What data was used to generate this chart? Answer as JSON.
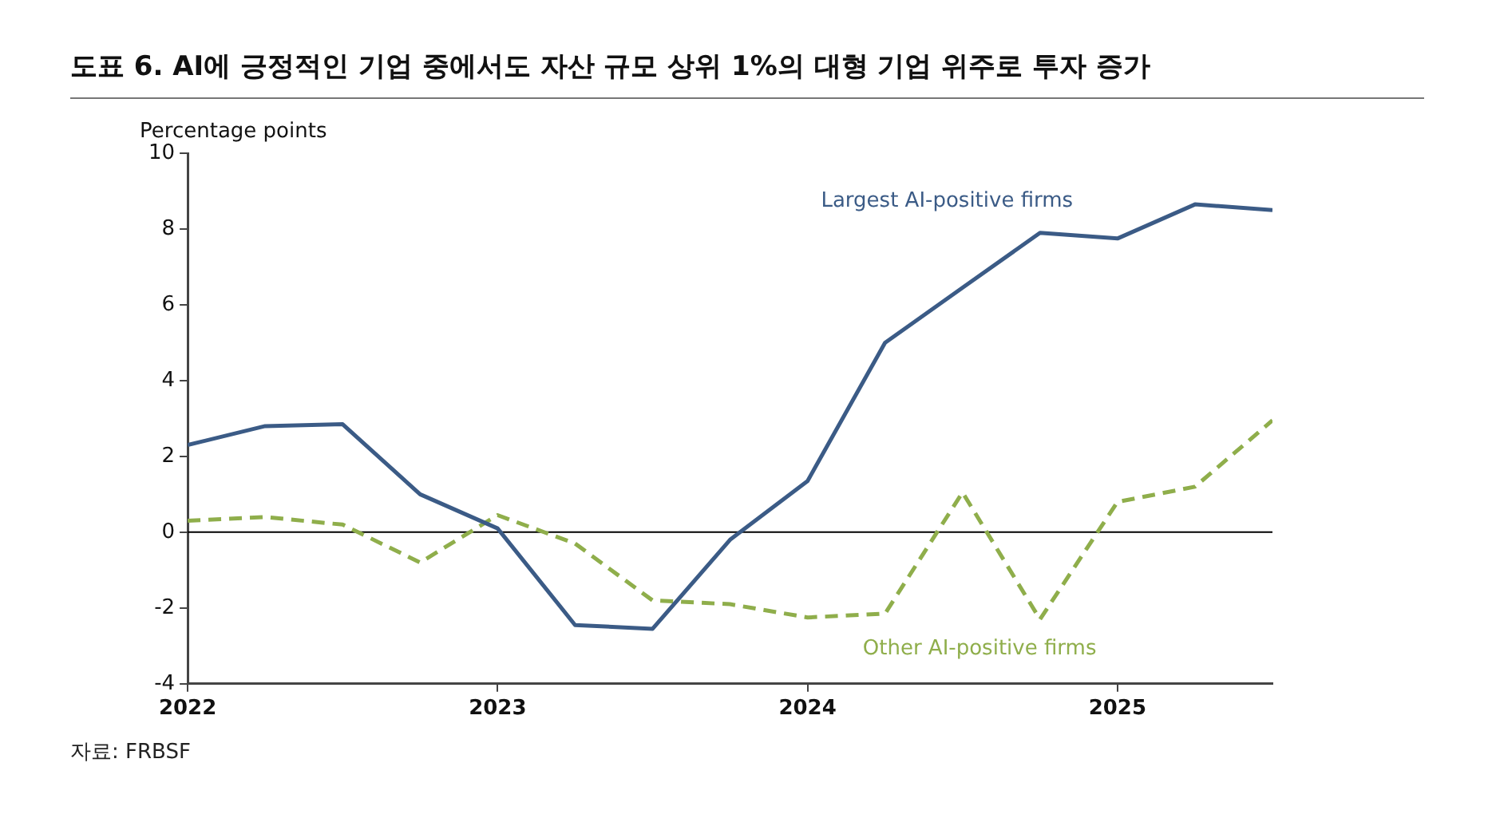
{
  "chart_data": {
    "type": "line",
    "title": "도표 6. AI에 긍정적인 기업 중에서도 자산 규모 상위 1%의 대형 기업 위주로 투자 증가",
    "ylabel": "Percentage points",
    "x": [
      "2022-01",
      "2022-04",
      "2022-07",
      "2022-10",
      "2023-01",
      "2023-04",
      "2023-07",
      "2023-10",
      "2024-01",
      "2024-04",
      "2024-07",
      "2024-10",
      "2025-01",
      "2025-04",
      "2025-07"
    ],
    "series": [
      {
        "name": "Largest AI-positive firms",
        "color": "#3b5b86",
        "line_style": "solid",
        "values": [
          2.3,
          2.8,
          2.85,
          1.0,
          0.1,
          -2.45,
          -2.55,
          -0.2,
          1.35,
          5.0,
          6.45,
          7.9,
          7.75,
          8.65,
          8.5
        ]
      },
      {
        "name": "Other AI-positive firms",
        "color": "#8fae4b",
        "line_style": "dashed",
        "values": [
          0.3,
          0.4,
          0.2,
          -0.8,
          0.45,
          -0.3,
          -1.8,
          -1.9,
          -2.25,
          -2.15,
          1.05,
          -2.3,
          0.8,
          1.2,
          2.95
        ]
      }
    ],
    "xlim": [
      "2022-01",
      "2025-07"
    ],
    "xticks": [
      {
        "value": "2022-01",
        "label": "2022"
      },
      {
        "value": "2023-01",
        "label": "2023"
      },
      {
        "value": "2024-01",
        "label": "2024"
      },
      {
        "value": "2025-01",
        "label": "2025"
      }
    ],
    "ylim": [
      -4,
      10
    ],
    "yticks": [
      -4,
      -2,
      0,
      2,
      4,
      6,
      8,
      10
    ],
    "ref_lines": [
      {
        "axis": "y",
        "value": 0,
        "label": null,
        "color": "#000000"
      }
    ],
    "grid": false,
    "legend": false,
    "marker": "none",
    "annotations": [
      "자료: FRBSF"
    ]
  }
}
